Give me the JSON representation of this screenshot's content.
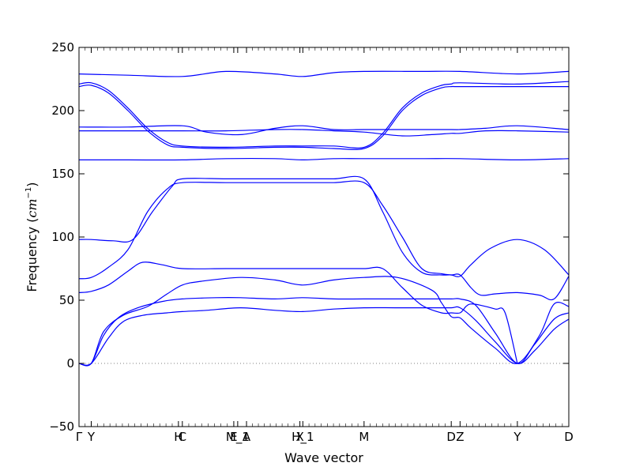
{
  "chart_data": {
    "type": "line",
    "title": "",
    "xlabel": "Wave vector",
    "ylabel_prefix": "Frequency (",
    "ylabel_unit": "cm",
    "ylabel_exp": "−1",
    "ylabel_suffix": ")",
    "ylim": [
      -50,
      250
    ],
    "yticks": [
      -50,
      0,
      50,
      100,
      150,
      200,
      250
    ],
    "ytick_labels": [
      "−50",
      "0",
      "50",
      "100",
      "150",
      "200",
      "250"
    ],
    "grid": false,
    "zero_line": "dotted",
    "line_color": "#0000ff",
    "xlim": [
      0,
      1
    ],
    "x_points": [
      {
        "label": "Γ",
        "x": 0.0
      },
      {
        "label": "Y",
        "x": 0.025
      },
      {
        "label": "H",
        "x": 0.203
      },
      {
        "label": "C",
        "x": 0.211
      },
      {
        "label": "E",
        "x": 0.316
      },
      {
        "label": "M_1",
        "x": 0.324
      },
      {
        "label": "A",
        "x": 0.342
      },
      {
        "label": "X",
        "x": 0.451
      },
      {
        "label": "H_1",
        "x": 0.457
      },
      {
        "label": "M",
        "x": 0.582
      },
      {
        "label": "D",
        "x": 0.76
      },
      {
        "label": "Z",
        "x": 0.778
      },
      {
        "label": "Y",
        "x": 0.895
      },
      {
        "label": "D",
        "x": 1.0
      }
    ],
    "series": [
      {
        "values": [
          [
            0,
            0
          ],
          [
            0.025,
            0
          ],
          [
            0.06,
            20
          ],
          [
            0.09,
            33
          ],
          [
            0.13,
            38
          ],
          [
            0.18,
            40
          ],
          [
            0.211,
            41
          ],
          [
            0.26,
            42
          ],
          [
            0.33,
            44
          ],
          [
            0.4,
            42
          ],
          [
            0.457,
            41
          ],
          [
            0.52,
            43
          ],
          [
            0.582,
            44
          ],
          [
            0.65,
            44
          ],
          [
            0.72,
            44
          ],
          [
            0.76,
            44
          ],
          [
            0.778,
            44
          ],
          [
            0.81,
            34
          ],
          [
            0.85,
            17
          ],
          [
            0.895,
            0
          ],
          [
            0.93,
            10
          ],
          [
            0.97,
            27
          ],
          [
            1.0,
            35
          ]
        ]
      },
      {
        "values": [
          [
            0,
            0
          ],
          [
            0.025,
            0
          ],
          [
            0.05,
            22
          ],
          [
            0.08,
            36
          ],
          [
            0.12,
            44
          ],
          [
            0.17,
            49
          ],
          [
            0.211,
            51
          ],
          [
            0.28,
            52
          ],
          [
            0.33,
            52
          ],
          [
            0.4,
            51
          ],
          [
            0.457,
            52
          ],
          [
            0.52,
            51
          ],
          [
            0.582,
            51
          ],
          [
            0.66,
            51
          ],
          [
            0.72,
            51
          ],
          [
            0.76,
            51
          ],
          [
            0.778,
            51
          ],
          [
            0.81,
            46
          ],
          [
            0.85,
            24
          ],
          [
            0.895,
            0
          ],
          [
            0.93,
            15
          ],
          [
            0.97,
            35
          ],
          [
            1.0,
            40
          ]
        ]
      },
      {
        "values": [
          [
            0,
            0
          ],
          [
            0.025,
            0
          ],
          [
            0.05,
            25
          ],
          [
            0.09,
            38
          ],
          [
            0.14,
            45
          ],
          [
            0.18,
            55
          ],
          [
            0.211,
            62
          ],
          [
            0.25,
            65
          ],
          [
            0.33,
            68
          ],
          [
            0.4,
            66
          ],
          [
            0.457,
            62
          ],
          [
            0.52,
            66
          ],
          [
            0.582,
            68
          ],
          [
            0.65,
            68
          ],
          [
            0.72,
            58
          ],
          [
            0.74,
            48
          ],
          [
            0.76,
            37
          ],
          [
            0.778,
            36
          ],
          [
            0.8,
            28
          ],
          [
            0.85,
            12
          ],
          [
            0.895,
            0
          ],
          [
            0.94,
            22
          ],
          [
            0.97,
            47
          ],
          [
            1.0,
            45
          ]
        ]
      },
      {
        "values": [
          [
            0,
            56
          ],
          [
            0.025,
            57
          ],
          [
            0.06,
            62
          ],
          [
            0.1,
            73
          ],
          [
            0.13,
            80
          ],
          [
            0.17,
            78
          ],
          [
            0.211,
            75
          ],
          [
            0.3,
            75
          ],
          [
            0.4,
            75
          ],
          [
            0.457,
            75
          ],
          [
            0.52,
            75
          ],
          [
            0.582,
            75
          ],
          [
            0.62,
            75
          ],
          [
            0.66,
            60
          ],
          [
            0.7,
            46
          ],
          [
            0.74,
            40
          ],
          [
            0.76,
            40
          ],
          [
            0.778,
            40
          ],
          [
            0.79,
            45
          ],
          [
            0.8,
            47
          ],
          [
            0.82,
            46
          ],
          [
            0.85,
            43
          ],
          [
            0.87,
            40
          ],
          [
            0.895,
            0
          ]
        ]
      },
      {
        "values": [
          [
            0,
            67
          ],
          [
            0.025,
            68
          ],
          [
            0.06,
            76
          ],
          [
            0.1,
            90
          ],
          [
            0.14,
            120
          ],
          [
            0.18,
            138
          ],
          [
            0.211,
            143
          ],
          [
            0.3,
            143
          ],
          [
            0.4,
            143
          ],
          [
            0.457,
            143
          ],
          [
            0.52,
            143
          ],
          [
            0.582,
            143
          ],
          [
            0.62,
            125
          ],
          [
            0.66,
            100
          ],
          [
            0.7,
            75
          ],
          [
            0.74,
            71
          ],
          [
            0.76,
            70
          ],
          [
            0.778,
            70
          ],
          [
            0.8,
            60
          ],
          [
            0.82,
            54
          ],
          [
            0.85,
            55
          ],
          [
            0.895,
            56
          ],
          [
            0.94,
            54
          ],
          [
            0.97,
            51
          ],
          [
            1.0,
            69
          ]
        ]
      },
      {
        "values": [
          [
            0,
            98
          ],
          [
            0.025,
            98
          ],
          [
            0.07,
            97
          ],
          [
            0.11,
            98
          ],
          [
            0.15,
            120
          ],
          [
            0.19,
            140
          ],
          [
            0.211,
            146
          ],
          [
            0.3,
            146
          ],
          [
            0.4,
            146
          ],
          [
            0.457,
            146
          ],
          [
            0.52,
            146
          ],
          [
            0.582,
            146
          ],
          [
            0.62,
            120
          ],
          [
            0.66,
            88
          ],
          [
            0.7,
            72
          ],
          [
            0.74,
            70
          ],
          [
            0.76,
            70
          ],
          [
            0.778,
            69
          ],
          [
            0.8,
            78
          ],
          [
            0.84,
            91
          ],
          [
            0.895,
            98
          ],
          [
            0.95,
            90
          ],
          [
            1.0,
            70
          ]
        ]
      },
      {
        "values": [
          [
            0,
            161
          ],
          [
            0.1,
            161
          ],
          [
            0.211,
            161
          ],
          [
            0.3,
            162
          ],
          [
            0.4,
            162
          ],
          [
            0.457,
            161
          ],
          [
            0.52,
            162
          ],
          [
            0.582,
            162
          ],
          [
            0.7,
            162
          ],
          [
            0.778,
            162
          ],
          [
            0.895,
            161
          ],
          [
            1.0,
            162
          ]
        ]
      },
      {
        "values": [
          [
            0,
            219
          ],
          [
            0.025,
            220
          ],
          [
            0.06,
            214
          ],
          [
            0.1,
            200
          ],
          [
            0.14,
            184
          ],
          [
            0.18,
            173
          ],
          [
            0.211,
            171
          ],
          [
            0.3,
            170
          ],
          [
            0.4,
            171
          ],
          [
            0.457,
            171
          ],
          [
            0.52,
            170
          ],
          [
            0.582,
            170
          ],
          [
            0.62,
            180
          ],
          [
            0.66,
            200
          ],
          [
            0.7,
            212
          ],
          [
            0.74,
            218
          ],
          [
            0.76,
            219
          ],
          [
            0.778,
            219
          ],
          [
            0.895,
            219
          ],
          [
            1.0,
            219
          ]
        ]
      },
      {
        "values": [
          [
            0,
            221
          ],
          [
            0.025,
            222
          ],
          [
            0.06,
            216
          ],
          [
            0.1,
            202
          ],
          [
            0.14,
            186
          ],
          [
            0.18,
            175
          ],
          [
            0.211,
            172
          ],
          [
            0.3,
            171
          ],
          [
            0.4,
            172
          ],
          [
            0.457,
            172
          ],
          [
            0.52,
            172
          ],
          [
            0.582,
            171
          ],
          [
            0.62,
            182
          ],
          [
            0.66,
            202
          ],
          [
            0.7,
            214
          ],
          [
            0.74,
            220
          ],
          [
            0.76,
            221
          ],
          [
            0.778,
            222
          ],
          [
            0.895,
            221
          ],
          [
            1.0,
            223
          ]
        ]
      },
      {
        "values": [
          [
            0,
            184
          ],
          [
            0.1,
            184
          ],
          [
            0.211,
            184
          ],
          [
            0.3,
            184
          ],
          [
            0.4,
            185
          ],
          [
            0.457,
            185
          ],
          [
            0.52,
            184
          ],
          [
            0.582,
            183
          ],
          [
            0.66,
            180
          ],
          [
            0.72,
            181
          ],
          [
            0.76,
            182
          ],
          [
            0.778,
            182
          ],
          [
            0.83,
            184
          ],
          [
            0.895,
            184
          ],
          [
            1.0,
            183
          ]
        ]
      },
      {
        "values": [
          [
            0,
            187
          ],
          [
            0.1,
            187
          ],
          [
            0.211,
            188
          ],
          [
            0.26,
            183
          ],
          [
            0.33,
            181
          ],
          [
            0.4,
            186
          ],
          [
            0.457,
            188
          ],
          [
            0.52,
            185
          ],
          [
            0.582,
            185
          ],
          [
            0.66,
            185
          ],
          [
            0.76,
            185
          ],
          [
            0.778,
            185
          ],
          [
            0.83,
            186
          ],
          [
            0.895,
            188
          ],
          [
            1.0,
            185
          ]
        ]
      },
      {
        "values": [
          [
            0,
            229
          ],
          [
            0.1,
            228
          ],
          [
            0.211,
            227
          ],
          [
            0.3,
            231
          ],
          [
            0.4,
            229
          ],
          [
            0.457,
            227
          ],
          [
            0.52,
            230
          ],
          [
            0.582,
            231
          ],
          [
            0.7,
            231
          ],
          [
            0.778,
            231
          ],
          [
            0.895,
            229
          ],
          [
            1.0,
            231
          ]
        ]
      }
    ]
  }
}
